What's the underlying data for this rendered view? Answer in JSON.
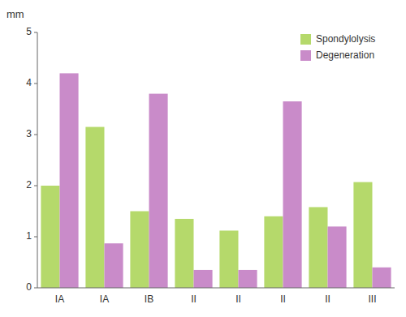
{
  "chart_data": {
    "type": "bar",
    "ylabel": "mm",
    "categories": [
      "IA",
      "IA",
      "IB",
      "II",
      "II",
      "II",
      "II",
      "III"
    ],
    "series": [
      {
        "name": "Spondylolysis",
        "color": "#b5d96b",
        "values": [
          2.0,
          3.15,
          1.5,
          1.35,
          1.12,
          1.4,
          1.58,
          2.07
        ]
      },
      {
        "name": "Degeneration",
        "color": "#c98bc9",
        "values": [
          4.2,
          0.87,
          3.8,
          0.35,
          0.35,
          3.65,
          1.2,
          0.4
        ]
      }
    ],
    "ylim": [
      0,
      5
    ],
    "yticks": [
      0,
      1,
      2,
      3,
      4,
      5
    ],
    "grid": false,
    "legend": "upper right"
  }
}
